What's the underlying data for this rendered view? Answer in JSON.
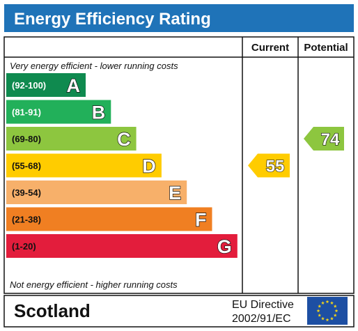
{
  "title": "Energy Efficiency Rating",
  "colors": {
    "title_bg": "#1f73b8",
    "title_text": "#ffffff",
    "border": "#111111",
    "eu_flag_bg": "#1d4fa3",
    "eu_flag_star": "#f2d31b"
  },
  "headers": {
    "current": "Current",
    "potential": "Potential"
  },
  "top_note": "Very energy efficient - lower running costs",
  "bottom_note": "Not energy efficient - higher running costs",
  "footer": {
    "region": "Scotland",
    "directive_line1": "EU Directive",
    "directive_line2": "2002/91/EC",
    "flag_icon": "eu-flag-icon"
  },
  "chart_data": {
    "type": "bar",
    "title": "Energy Efficiency Rating",
    "bands": [
      {
        "range": "(92-100)",
        "letter": "A",
        "color": "#0f8a4f",
        "range_color": "#ffffff"
      },
      {
        "range": "(81-91)",
        "letter": "B",
        "color": "#22b05a",
        "range_color": "#ffffff"
      },
      {
        "range": "(69-80)",
        "letter": "C",
        "color": "#8dc63f",
        "range_color": "#111111"
      },
      {
        "range": "(55-68)",
        "letter": "D",
        "color": "#ffcc00",
        "range_color": "#111111"
      },
      {
        "range": "(39-54)",
        "letter": "E",
        "color": "#f7b06a",
        "range_color": "#111111"
      },
      {
        "range": "(21-38)",
        "letter": "F",
        "color": "#f07f22",
        "range_color": "#111111"
      },
      {
        "range": "(1-20)",
        "letter": "G",
        "color": "#e31d3c",
        "range_color": "#111111"
      }
    ],
    "current": {
      "value": 55,
      "band": "D",
      "color": "#ffcc00"
    },
    "potential": {
      "value": 74,
      "band": "C",
      "color": "#8dc63f"
    }
  }
}
